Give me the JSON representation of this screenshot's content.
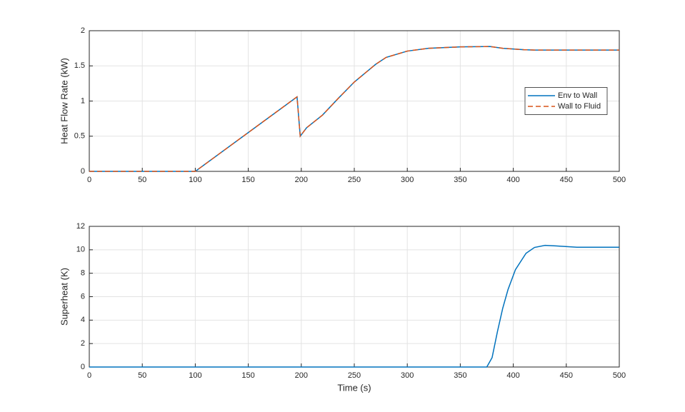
{
  "chart_data": [
    {
      "type": "line",
      "ylabel": "Heat Flow Rate (kW)",
      "x": [
        0,
        100,
        196,
        199,
        205,
        220,
        235,
        250,
        270,
        280,
        300,
        320,
        350,
        378,
        390,
        410,
        420,
        500
      ],
      "series": [
        {
          "name": "Env to Wall",
          "color": "#0072bd",
          "linestyle": "solid",
          "values": [
            0,
            0,
            1.06,
            0.5,
            0.62,
            0.8,
            1.04,
            1.27,
            1.52,
            1.62,
            1.71,
            1.75,
            1.77,
            1.775,
            1.75,
            1.73,
            1.725,
            1.725
          ]
        },
        {
          "name": "Wall to Fluid",
          "color": "#d95319",
          "linestyle": "dashed",
          "values": [
            0,
            0,
            1.06,
            0.5,
            0.62,
            0.8,
            1.04,
            1.27,
            1.52,
            1.62,
            1.71,
            1.75,
            1.77,
            1.775,
            1.75,
            1.73,
            1.725,
            1.725
          ]
        }
      ],
      "xlim": [
        0,
        500
      ],
      "xticks": [
        0,
        50,
        100,
        150,
        200,
        250,
        300,
        350,
        400,
        450,
        500
      ],
      "ylim": [
        0,
        2
      ],
      "yticks": [
        0,
        0.5,
        1,
        1.5,
        2
      ],
      "grid": true,
      "legend": "east"
    },
    {
      "type": "line",
      "ylabel": "Superheat (K)",
      "xlabel": "Time (s)",
      "x": [
        0,
        375,
        380,
        385,
        390,
        395,
        402,
        412,
        420,
        430,
        440,
        460,
        500
      ],
      "series": [
        {
          "color": "#0072bd",
          "linestyle": "solid",
          "values": [
            0,
            0,
            0.8,
            3,
            5,
            6.6,
            8.3,
            9.7,
            10.2,
            10.38,
            10.33,
            10.22,
            10.22
          ]
        }
      ],
      "xlim": [
        0,
        500
      ],
      "xticks": [
        0,
        50,
        100,
        150,
        200,
        250,
        300,
        350,
        400,
        450,
        500
      ],
      "ylim": [
        0,
        12
      ],
      "yticks": [
        0,
        2,
        4,
        6,
        8,
        10,
        12
      ],
      "grid": true
    }
  ]
}
